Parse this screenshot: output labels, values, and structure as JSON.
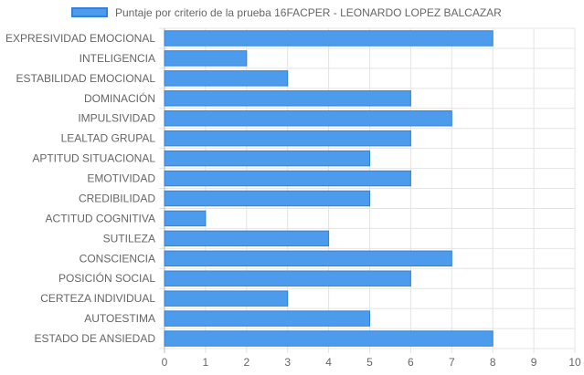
{
  "chart_data": {
    "type": "bar",
    "orientation": "horizontal",
    "categories": [
      "EXPRESIVIDAD EMOCIONAL",
      "INTELIGENCIA",
      "ESTABILIDAD EMOCIONAL",
      "DOMINACIÓN",
      "IMPULSIVIDAD",
      "LEALTAD GRUPAL",
      "APTITUD SITUACIONAL",
      "EMOTIVIDAD",
      "CREDIBILIDAD",
      "ACTITUD COGNITIVA",
      "SUTILEZA",
      "CONSCIENCIA",
      "POSICIÓN SOCIAL",
      "CERTEZA INDIVIDUAL",
      "AUTOESTIMA",
      "ESTADO DE ANSIEDAD"
    ],
    "series": [
      {
        "name": "Puntaje por criterio de la prueba 16FACPER - LEONARDO LOPEZ BALCAZAR",
        "values": [
          8,
          2,
          3,
          6,
          7,
          6,
          5,
          6,
          5,
          1,
          4,
          7,
          6,
          3,
          5,
          8
        ]
      }
    ],
    "xlim": [
      0,
      10
    ],
    "xticks": [
      "0",
      "1",
      "2",
      "3",
      "4",
      "5",
      "6",
      "7",
      "8",
      "9",
      "10"
    ],
    "grid": true,
    "legend_position": "top",
    "colors": {
      "bar_fill": "#4d9bec",
      "bar_border": "#3282dc",
      "grid": "#e4e4e4",
      "label": "#666666"
    }
  }
}
